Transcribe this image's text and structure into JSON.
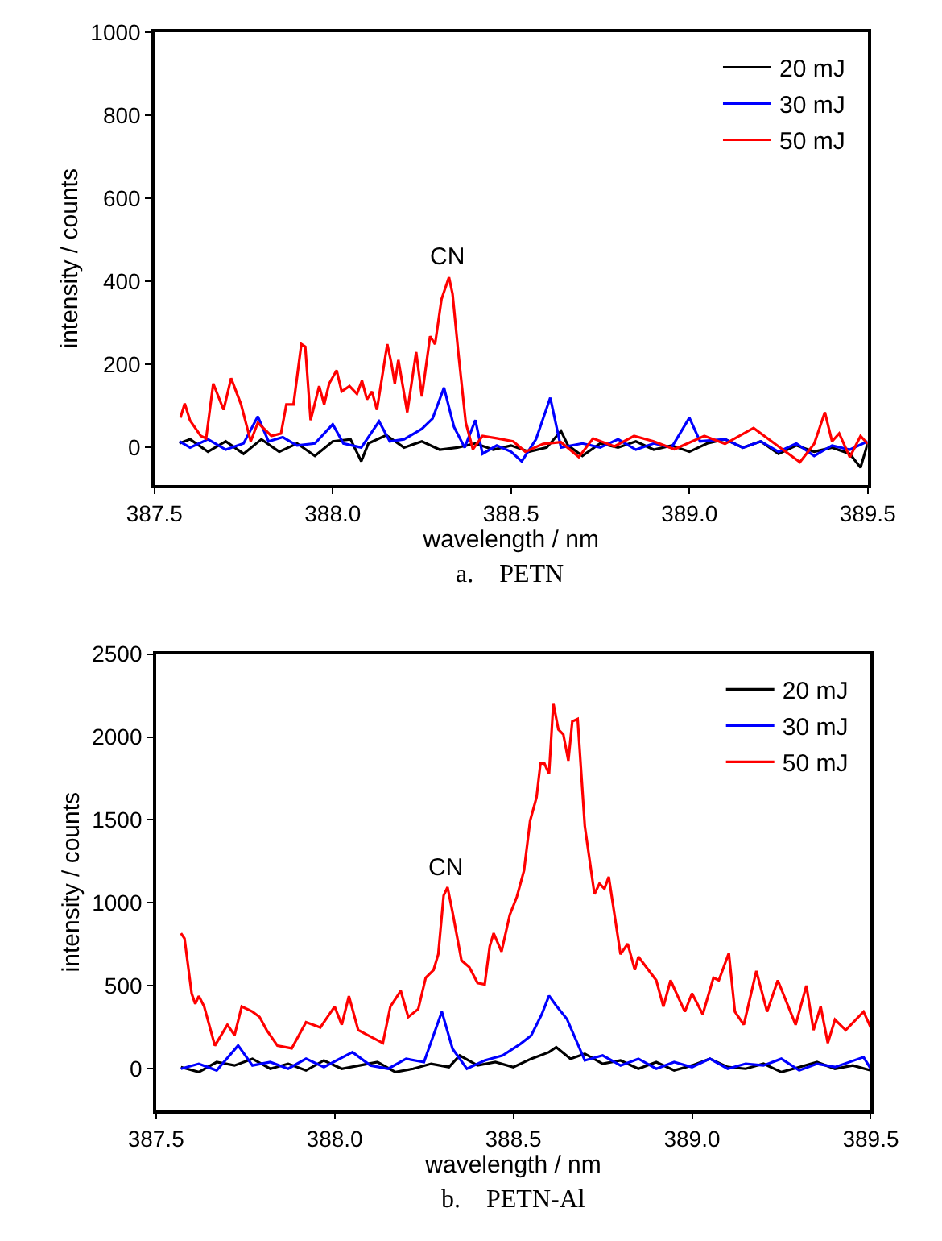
{
  "chart_data": [
    {
      "type": "line",
      "xlabel": "wavelength / nm",
      "ylabel": "intensity / counts",
      "xlim": [
        387.5,
        389.5
      ],
      "ylim": [
        -90,
        1000
      ],
      "xticks": [
        {
          "value": 387.5,
          "label": "387.5"
        },
        {
          "value": 388,
          "label": "388.0"
        },
        {
          "value": 388.5,
          "label": "388.5"
        },
        {
          "value": 389,
          "label": "389.0"
        },
        {
          "value": 389.5,
          "label": "389.5"
        }
      ],
      "yticks": [
        0,
        200,
        400,
        600,
        800,
        1000
      ],
      "legend": "top right",
      "annotations": [
        {
          "text": "CN",
          "x": 388.32,
          "y": 410
        },
        "a.    PETN"
      ],
      "series": [
        {
          "name": "20 mJ",
          "color": "#000000",
          "x": [
            387.57,
            387.6,
            387.65,
            387.7,
            387.75,
            387.8,
            387.85,
            387.9,
            387.95,
            388.0,
            388.05,
            388.08,
            388.1,
            388.15,
            388.2,
            388.25,
            388.3,
            388.35,
            388.4,
            388.45,
            388.5,
            388.55,
            388.6,
            388.64,
            388.66,
            388.7,
            388.75,
            388.8,
            388.85,
            388.9,
            388.95,
            389.0,
            389.05,
            389.1,
            389.15,
            389.2,
            389.25,
            389.3,
            389.35,
            389.4,
            389.45,
            389.48,
            389.5
          ],
          "values": [
            10,
            20,
            -10,
            15,
            -15,
            20,
            -10,
            10,
            -20,
            15,
            20,
            -33,
            10,
            30,
            0,
            15,
            -5,
            0,
            10,
            -5,
            5,
            -10,
            0,
            40,
            5,
            -20,
            10,
            0,
            15,
            -5,
            5,
            -10,
            10,
            20,
            0,
            15,
            -15,
            5,
            -10,
            0,
            -15,
            -48,
            10
          ]
        },
        {
          "name": "30 mJ",
          "color": "#0000ff",
          "x": [
            387.57,
            387.6,
            387.65,
            387.7,
            387.75,
            387.79,
            387.82,
            387.86,
            387.9,
            387.95,
            388.0,
            388.03,
            388.08,
            388.13,
            388.16,
            388.2,
            388.25,
            388.28,
            388.312,
            388.34,
            388.37,
            388.4,
            388.42,
            388.46,
            388.5,
            388.53,
            388.57,
            388.61,
            388.64,
            388.7,
            388.75,
            388.8,
            388.85,
            388.9,
            388.95,
            389.0,
            389.03,
            389.1,
            389.15,
            389.2,
            389.25,
            389.3,
            389.35,
            389.4,
            389.45,
            389.5
          ],
          "values": [
            15,
            0,
            20,
            -5,
            10,
            75,
            15,
            25,
            5,
            10,
            56,
            10,
            0,
            63,
            15,
            20,
            45,
            70,
            144,
            50,
            0,
            66,
            -15,
            5,
            -10,
            -33,
            20,
            120,
            0,
            10,
            0,
            20,
            -5,
            10,
            0,
            72,
            15,
            20,
            0,
            15,
            -10,
            10,
            -20,
            5,
            -5,
            15
          ]
        },
        {
          "name": "50 mJ",
          "color": "#ff0000",
          "x": [
            387.573,
            387.585,
            387.6,
            387.63,
            387.645,
            387.665,
            387.694,
            387.715,
            387.743,
            387.77,
            387.79,
            387.828,
            387.855,
            387.87,
            387.89,
            387.912,
            387.923,
            387.938,
            387.962,
            387.976,
            387.99,
            388.011,
            388.025,
            388.047,
            388.068,
            388.082,
            388.096,
            388.11,
            388.124,
            388.153,
            388.164,
            388.174,
            388.184,
            388.209,
            388.234,
            388.25,
            388.273,
            388.287,
            388.305,
            388.326,
            388.336,
            388.352,
            388.373,
            388.393,
            388.42,
            388.463,
            388.506,
            388.54,
            388.59,
            388.64,
            388.69,
            388.73,
            388.79,
            388.845,
            388.9,
            388.958,
            389.042,
            389.1,
            389.18,
            389.24,
            389.31,
            389.35,
            389.38,
            389.4,
            389.42,
            389.45,
            389.48,
            389.5
          ],
          "values": [
            72,
            106,
            65,
            28,
            22,
            154,
            91,
            167,
            104,
            15,
            60,
            28,
            34,
            104,
            104,
            249,
            243,
            66,
            148,
            104,
            154,
            186,
            135,
            148,
            129,
            161,
            116,
            135,
            91,
            249,
            205,
            154,
            211,
            85,
            230,
            123,
            268,
            249,
            357,
            410,
            370,
            230,
            60,
            -4,
            28,
            22,
            15,
            -10,
            9,
            13,
            -23,
            22,
            3,
            28,
            15,
            -4,
            28,
            9,
            47,
            9,
            -35,
            9,
            85,
            15,
            34,
            -23,
            28,
            9
          ]
        }
      ]
    },
    {
      "type": "line",
      "xlabel": "wavelength / nm",
      "ylabel": "intensity / counts",
      "xlim": [
        387.5,
        389.5
      ],
      "ylim": [
        -250,
        2500
      ],
      "xticks": [
        {
          "value": 387.5,
          "label": "387.5"
        },
        {
          "value": 388,
          "label": "388.0"
        },
        {
          "value": 388.5,
          "label": "388.5"
        },
        {
          "value": 389,
          "label": "389.0"
        },
        {
          "value": 389.5,
          "label": "389.5"
        }
      ],
      "yticks": [
        0,
        500,
        1000,
        1500,
        2000,
        2500
      ],
      "legend": "top right",
      "annotations": [
        {
          "text": "CN",
          "x": 388.31,
          "y": 1094
        },
        "b.    PETN-Al"
      ],
      "series": [
        {
          "name": "20 mJ",
          "color": "#000000",
          "x": [
            387.57,
            387.62,
            387.67,
            387.72,
            387.77,
            387.82,
            387.87,
            387.92,
            387.97,
            388.02,
            388.07,
            388.12,
            388.17,
            388.22,
            388.27,
            388.32,
            388.35,
            388.4,
            388.45,
            388.5,
            388.55,
            388.6,
            388.62,
            388.66,
            388.7,
            388.75,
            388.8,
            388.85,
            388.9,
            388.95,
            389.0,
            389.05,
            389.1,
            389.15,
            389.2,
            389.25,
            389.3,
            389.35,
            389.4,
            389.45,
            389.5
          ],
          "values": [
            10,
            -20,
            40,
            20,
            60,
            0,
            30,
            -10,
            50,
            0,
            20,
            40,
            -20,
            0,
            30,
            10,
            80,
            20,
            40,
            10,
            60,
            100,
            130,
            60,
            90,
            30,
            50,
            0,
            40,
            -10,
            20,
            60,
            10,
            0,
            30,
            -20,
            10,
            40,
            0,
            20,
            -10
          ]
        },
        {
          "name": "30 mJ",
          "color": "#0000ff",
          "x": [
            387.57,
            387.62,
            387.67,
            387.73,
            387.77,
            387.82,
            387.87,
            387.92,
            387.97,
            388.05,
            388.1,
            388.15,
            388.2,
            388.25,
            388.3,
            388.33,
            388.37,
            388.42,
            388.47,
            388.52,
            388.55,
            388.58,
            388.6,
            388.62,
            388.65,
            388.7,
            388.75,
            388.8,
            388.85,
            388.9,
            388.95,
            389.0,
            389.05,
            389.1,
            389.15,
            389.2,
            389.25,
            389.3,
            389.35,
            389.4,
            389.48,
            389.5
          ],
          "values": [
            0,
            30,
            -10,
            140,
            20,
            40,
            0,
            60,
            10,
            100,
            20,
            0,
            60,
            40,
            344,
            120,
            0,
            50,
            80,
            150,
            200,
            330,
            440,
            380,
            300,
            50,
            80,
            20,
            60,
            0,
            40,
            10,
            60,
            0,
            30,
            20,
            60,
            -10,
            30,
            10,
            70,
            0
          ]
        },
        {
          "name": "50 mJ",
          "color": "#ff0000",
          "x": [
            387.57,
            387.58,
            387.6,
            387.61,
            387.62,
            387.635,
            387.665,
            387.7,
            387.72,
            387.74,
            387.77,
            387.79,
            387.81,
            387.84,
            387.88,
            387.92,
            387.96,
            388.0,
            388.02,
            388.04,
            388.066,
            388.093,
            388.135,
            388.156,
            388.185,
            388.206,
            388.234,
            388.255,
            388.277,
            388.29,
            388.305,
            388.316,
            388.33,
            388.355,
            388.377,
            388.4,
            388.42,
            388.434,
            388.445,
            388.467,
            388.49,
            388.51,
            388.53,
            388.547,
            388.565,
            388.576,
            388.587,
            388.6,
            388.612,
            388.626,
            388.64,
            388.654,
            388.665,
            388.68,
            388.7,
            388.727,
            388.741,
            388.755,
            388.767,
            388.8,
            388.82,
            388.84,
            388.85,
            388.9,
            388.92,
            388.94,
            388.96,
            388.98,
            389.0,
            389.03,
            389.06,
            389.075,
            389.103,
            389.12,
            389.145,
            389.18,
            389.21,
            389.24,
            389.29,
            389.32,
            389.34,
            389.36,
            389.38,
            389.4,
            389.43,
            389.48,
            389.5
          ],
          "values": [
            817,
            785,
            454,
            391,
            438,
            375,
            139,
            265,
            202,
            375,
            344,
            312,
            233,
            139,
            123,
            281,
            249,
            375,
            265,
            438,
            233,
            202,
            155,
            375,
            470,
            312,
            360,
            549,
            596,
            690,
            1044,
            1094,
            943,
            653,
            612,
            517,
            508,
            738,
            817,
            706,
            927,
            1037,
            1195,
            1495,
            1636,
            1841,
            1841,
            1778,
            2204,
            2046,
            2015,
            1857,
            2094,
            2109,
            1463,
            1053,
            1116,
            1085,
            1157,
            690,
            754,
            596,
            675,
            533,
            375,
            533,
            438,
            344,
            454,
            328,
            549,
            533,
            697,
            344,
            265,
            590,
            344,
            533,
            265,
            501,
            233,
            375,
            155,
            296,
            233,
            344,
            249
          ]
        }
      ]
    }
  ]
}
